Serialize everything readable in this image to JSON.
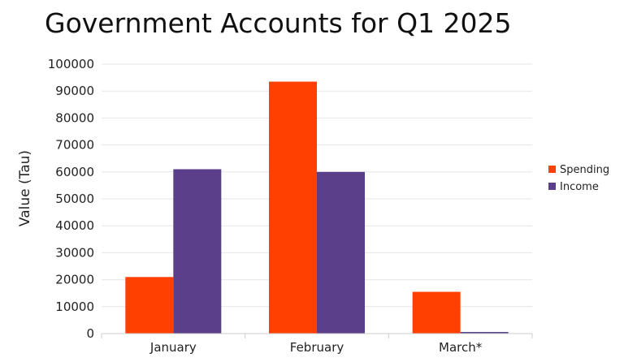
{
  "chart_data": {
    "type": "bar",
    "title": "Government Accounts for Q1 2025",
    "xlabel": "",
    "ylabel": "Value (Tau)",
    "categories": [
      "January",
      "February",
      "March*"
    ],
    "series": [
      {
        "name": "Spending",
        "color": "#ff4000",
        "values": [
          21000,
          93500,
          15500
        ]
      },
      {
        "name": "Income",
        "color": "#5b3f8a",
        "values": [
          61000,
          60000,
          600
        ]
      }
    ],
    "ylim": [
      0,
      100000
    ],
    "yticks": [
      "0",
      "10000",
      "20000",
      "30000",
      "40000",
      "50000",
      "60000",
      "70000",
      "80000",
      "90000",
      "100000"
    ],
    "grid": true,
    "legend_position": "right"
  }
}
